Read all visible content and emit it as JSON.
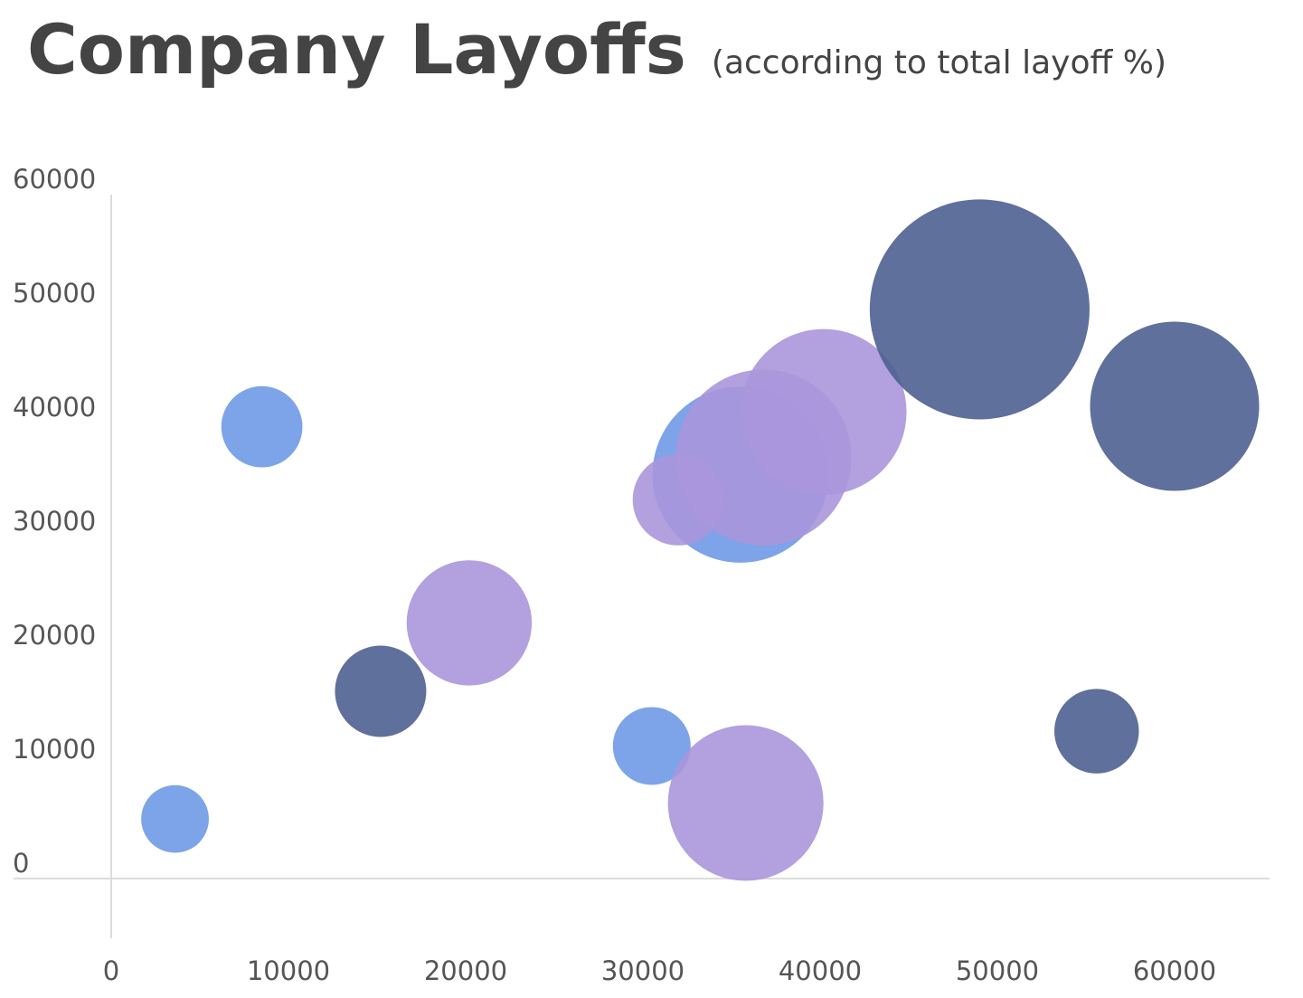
{
  "chart_data": {
    "type": "scatter",
    "title": "Company Layoffs",
    "subtitle": "(according to total layoff %)",
    "xlabel": "",
    "ylabel": "",
    "xlim": [
      0,
      65000
    ],
    "ylim": [
      -5000,
      60000
    ],
    "x_ticks": [
      "0",
      "10000",
      "20000",
      "30000",
      "40000",
      "50000",
      "60000"
    ],
    "y_ticks": [
      "0",
      "10000",
      "20000",
      "30000",
      "40000",
      "50000",
      "60000"
    ],
    "grid": false,
    "series": [
      {
        "color": "#6f9ae6",
        "points": [
          {
            "x": 3600,
            "y": 3800,
            "size": 2.0
          },
          {
            "x": 8500,
            "y": 38200,
            "size": 2.4
          },
          {
            "x": 30500,
            "y": 10200,
            "size": 2.3
          },
          {
            "x": 35500,
            "y": 34000,
            "size": 5.2
          }
        ]
      },
      {
        "color": "#aa96dc",
        "points": [
          {
            "x": 20200,
            "y": 21000,
            "size": 3.7
          },
          {
            "x": 32000,
            "y": 31800,
            "size": 2.7
          },
          {
            "x": 36800,
            "y": 35500,
            "size": 5.2
          },
          {
            "x": 40200,
            "y": 39500,
            "size": 4.9
          },
          {
            "x": 35800,
            "y": 5200,
            "size": 4.6
          }
        ]
      },
      {
        "color": "#4c6090",
        "points": [
          {
            "x": 15200,
            "y": 15000,
            "size": 2.7
          },
          {
            "x": 49000,
            "y": 48500,
            "size": 6.5
          },
          {
            "x": 60000,
            "y": 40000,
            "size": 5.0
          },
          {
            "x": 55600,
            "y": 11500,
            "size": 2.5
          }
        ]
      }
    ]
  }
}
